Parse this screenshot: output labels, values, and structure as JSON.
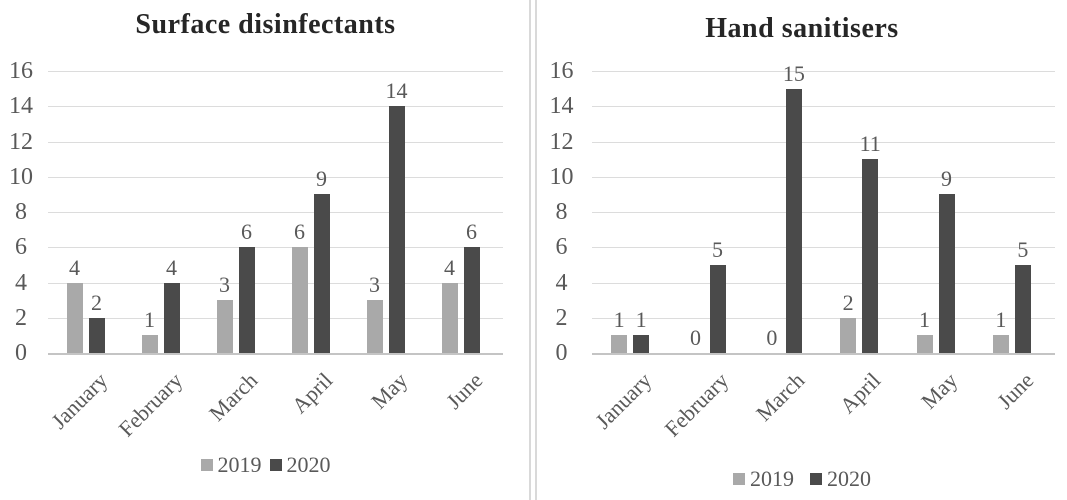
{
  "figure": {
    "background": "#ffffff",
    "divider_color": "#d9d9d9"
  },
  "colors": {
    "series_2019": "#a9a9a9",
    "series_2020": "#4a4a4a",
    "gridline": "#dcdcdc",
    "axis_line": "#c4c4c4",
    "text_gray": "#595959",
    "title_text": "#262626"
  },
  "chart_data": [
    {
      "type": "bar",
      "title": "Surface disinfectants",
      "categories": [
        "January",
        "February",
        "March",
        "April",
        "May",
        "June"
      ],
      "series": [
        {
          "name": "2019",
          "color": "#a9a9a9",
          "values": [
            4,
            1,
            3,
            6,
            3,
            4
          ]
        },
        {
          "name": "2020",
          "color": "#4a4a4a",
          "values": [
            2,
            4,
            6,
            9,
            14,
            6
          ]
        }
      ],
      "ylim": [
        0,
        16
      ],
      "yticks": [
        0,
        2,
        4,
        6,
        8,
        10,
        12,
        14,
        16
      ],
      "xlabel": "",
      "ylabel": "",
      "grid": true,
      "data_labels": true,
      "legend_position": "bottom"
    },
    {
      "type": "bar",
      "title": "Hand sanitisers",
      "categories": [
        "January",
        "February",
        "March",
        "April",
        "May",
        "June"
      ],
      "series": [
        {
          "name": "2019",
          "color": "#a9a9a9",
          "values": [
            1,
            0,
            0,
            2,
            1,
            1
          ]
        },
        {
          "name": "2020",
          "color": "#4a4a4a",
          "values": [
            1,
            5,
            15,
            11,
            9,
            5
          ]
        }
      ],
      "ylim": [
        0,
        16
      ],
      "yticks": [
        0,
        2,
        4,
        6,
        8,
        10,
        12,
        14,
        16
      ],
      "xlabel": "",
      "ylabel": "",
      "grid": true,
      "data_labels": true,
      "legend_position": "bottom"
    }
  ]
}
